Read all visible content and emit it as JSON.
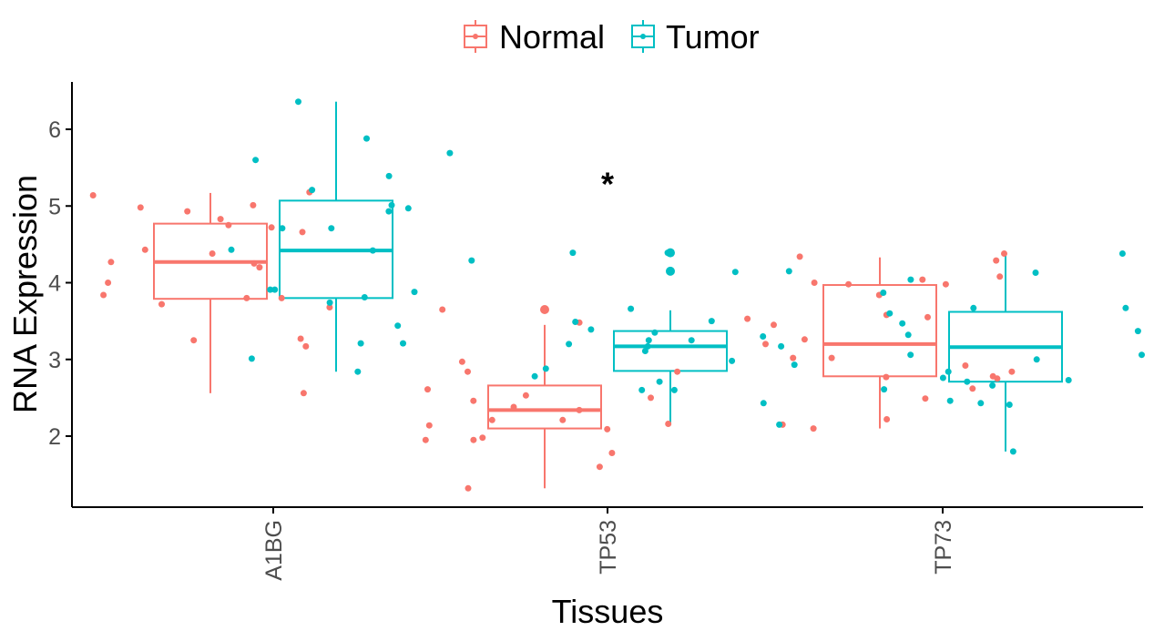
{
  "colors": {
    "normal": "#F8766D",
    "tumor": "#00BFC4",
    "axis": "#000000",
    "tick_text": "#4d4d4d"
  },
  "chart_data": {
    "type": "boxplot",
    "xlabel": "Tissues",
    "ylabel": "RNA Expression",
    "ylim": [
      1.05,
      6.6
    ],
    "yticks": [
      2,
      3,
      4,
      5,
      6
    ],
    "ytick_labels": [
      "2",
      "3",
      "4",
      "5",
      "6"
    ],
    "categories": [
      "A1BG",
      "TP53",
      "TP73"
    ],
    "legend": {
      "position": "top",
      "entries": [
        "Normal",
        "Tumor"
      ]
    },
    "annotations": [
      {
        "category": "TP53",
        "y": 5.4,
        "text": "*"
      }
    ],
    "series": [
      {
        "name": "Normal",
        "boxes": [
          {
            "category": "A1BG",
            "min": 2.56,
            "q1": 3.79,
            "median": 4.27,
            "q3": 4.77,
            "max": 5.17,
            "outliers": []
          },
          {
            "category": "TP53",
            "min": 1.32,
            "q1": 2.1,
            "median": 2.34,
            "q3": 2.66,
            "max": 3.45,
            "outliers": [
              3.65
            ]
          },
          {
            "category": "TP73",
            "min": 2.1,
            "q1": 2.78,
            "median": 3.2,
            "q3": 3.97,
            "max": 4.33,
            "outliers": []
          }
        ],
        "points": [
          {
            "category": "A1BG",
            "values": [
              5.18,
              4.83,
              4.75,
              4.72,
              4.98,
              4.38,
              4.27,
              4.2,
              3.8,
              3.8,
              3.72,
              3.25,
              2.56,
              5.01,
              5.14,
              4.93,
              4.66,
              4.0,
              3.68,
              3.27,
              3.17,
              3.84,
              4.43,
              4.25
            ]
          },
          {
            "category": "TP53",
            "values": [
              3.65,
              2.53,
              2.34,
              2.21,
              2.14,
              2.16,
              1.95,
              1.78,
              1.6,
              1.98,
              2.61,
              2.5,
              2.97,
              2.84,
              2.21,
              2.09,
              1.32,
              1.95,
              2.38,
              2.46,
              3.48,
              2.84
            ]
          },
          {
            "category": "TP73",
            "values": [
              2.84,
              3.84,
              2.75,
              2.22,
              2.62,
              2.77,
              2.78,
              3.58,
              3.55,
              2.49,
              4.29,
              4.38,
              4.34,
              4.04,
              4.0,
              3.98,
              3.26,
              2.15,
              3.98,
              2.92,
              3.02,
              3.02,
              3.45,
              3.53,
              3.2,
              2.1,
              4.08
            ]
          }
        ]
      },
      {
        "name": "Tumor",
        "boxes": [
          {
            "category": "A1BG",
            "min": 2.84,
            "q1": 3.8,
            "median": 4.42,
            "q3": 5.07,
            "max": 6.36,
            "outliers": []
          },
          {
            "category": "TP53",
            "min": 2.15,
            "q1": 2.85,
            "median": 3.17,
            "q3": 3.37,
            "max": 3.64,
            "outliers": [
              4.39,
              4.15
            ]
          },
          {
            "category": "TP73",
            "min": 1.8,
            "q1": 2.71,
            "median": 3.16,
            "q3": 3.62,
            "max": 4.37,
            "outliers": []
          }
        ],
        "points": [
          {
            "category": "A1BG",
            "values": [
              3.01,
              5.88,
              5.21,
              5.01,
              4.71,
              4.93,
              3.88,
              3.81,
              5.69,
              5.39,
              4.71,
              3.74,
              3.21,
              3.21,
              6.36,
              5.6,
              4.97,
              4.42,
              4.29,
              3.91,
              3.44,
              2.84,
              4.43,
              3.91
            ]
          },
          {
            "category": "TP53",
            "values": [
              2.78,
              3.35,
              3.2,
              3.25,
              3.17,
              3.11,
              3.5,
              2.88,
              2.98,
              3.3,
              2.71,
              4.14,
              2.43,
              2.15,
              3.66,
              4.39,
              3.17,
              4.39,
              4.15,
              3.49,
              3.25,
              2.93,
              2.6,
              2.6,
              3.39
            ]
          },
          {
            "category": "TP73",
            "values": [
              3.87,
              3.67,
              2.43,
              4.38,
              4.13,
              3.6,
              3.06,
              2.41,
              1.8,
              3.67,
              2.71,
              3.37,
              3.32,
              3.0,
              2.84,
              2.66,
              2.46,
              2.61,
              3.47,
              3.06,
              2.73,
              4.04,
              2.76
            ]
          }
        ]
      }
    ]
  }
}
